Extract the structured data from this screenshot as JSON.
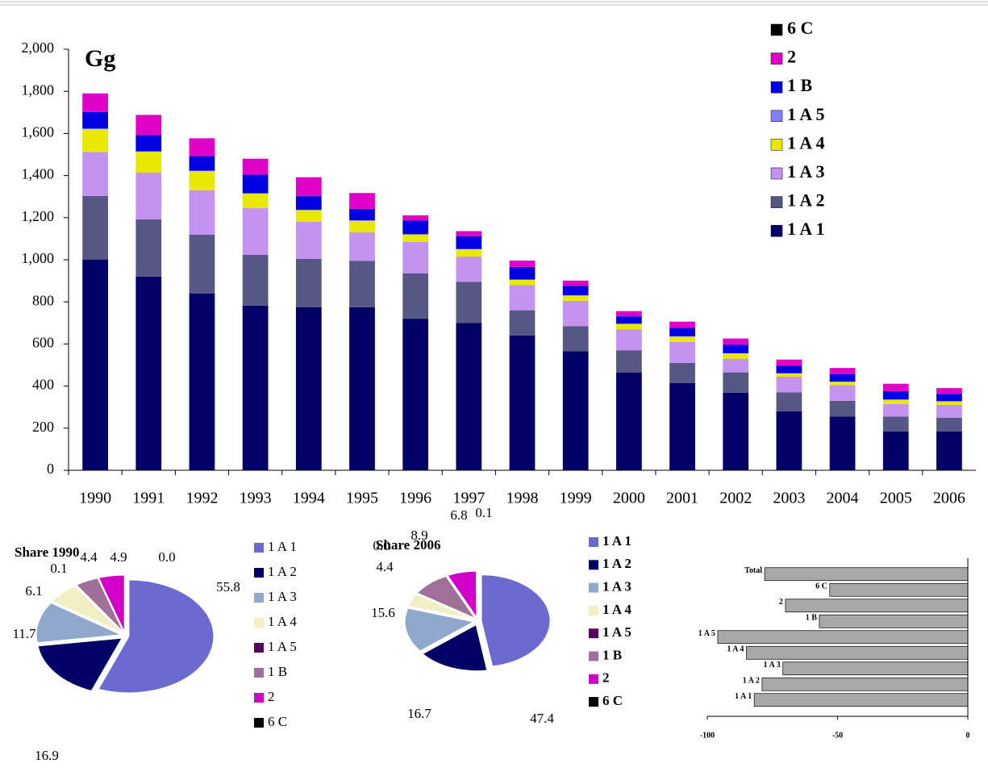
{
  "chart_data": [
    {
      "type": "stacked-bar",
      "annotation": "Gg",
      "categories": [
        "1990",
        "1991",
        "1992",
        "1993",
        "1994",
        "1995",
        "1996",
        "1997",
        "1998",
        "1999",
        "2000",
        "2001",
        "2002",
        "2003",
        "2004",
        "2005",
        "2006"
      ],
      "series": [
        {
          "name": "1 A 1",
          "color": "#000066",
          "values": [
            1000,
            920,
            839,
            782,
            774,
            775,
            720,
            700,
            640,
            565,
            465,
            415,
            368,
            280,
            255,
            185,
            185
          ]
        },
        {
          "name": "1 A 2",
          "color": "#575785",
          "values": [
            303,
            272,
            280,
            241,
            230,
            220,
            215,
            195,
            120,
            120,
            105,
            95,
            97,
            90,
            75,
            70,
            65
          ]
        },
        {
          "name": "1 A 3",
          "color": "#c493f0",
          "values": [
            209,
            222,
            211,
            222,
            176,
            135,
            150,
            120,
            120,
            120,
            100,
            100,
            65,
            75,
            75,
            60,
            61
          ]
        },
        {
          "name": "1 A 4",
          "color": "#e8e800",
          "values": [
            109,
            99,
            91,
            69,
            55,
            55,
            35,
            35,
            25,
            25,
            25,
            25,
            25,
            15,
            15,
            20,
            17
          ]
        },
        {
          "name": "1 A 5",
          "color": "#8080ff",
          "values": [
            2,
            2,
            2,
            2,
            2,
            2,
            1,
            1,
            1,
            1,
            1,
            1,
            1,
            1,
            1,
            1,
            0
          ]
        },
        {
          "name": "1 B",
          "color": "#0000e0",
          "values": [
            79,
            77,
            69,
            88,
            65,
            55,
            65,
            60,
            60,
            45,
            35,
            40,
            40,
            35,
            35,
            40,
            35
          ]
        },
        {
          "name": "2",
          "color": "#e000c8",
          "values": [
            88,
            96,
            85,
            76,
            90,
            75,
            25,
            25,
            30,
            25,
            25,
            30,
            30,
            30,
            30,
            35,
            27
          ]
        },
        {
          "name": "6 C",
          "color": "#000000",
          "values": [
            0,
            0,
            0,
            0,
            0,
            0,
            0,
            0,
            0,
            0,
            0,
            0,
            0,
            0,
            0,
            0,
            0.4
          ]
        }
      ],
      "ylim": [
        0,
        2000
      ],
      "yticks": [
        0,
        200,
        400,
        600,
        800,
        {
          "value": 1000,
          "label": "1,000"
        },
        {
          "value": 1200,
          "label": "1,200"
        },
        {
          "value": 1400,
          "label": "1,400"
        },
        {
          "value": 1600,
          "label": "1,600"
        },
        {
          "value": 1800,
          "label": "1,800"
        },
        {
          "value": 2000,
          "label": "2,000"
        }
      ]
    },
    {
      "type": "pie",
      "title": "Share 1990",
      "categories": [
        "1 A 1",
        "1 A 2",
        "1 A 3",
        "1 A 4",
        "1 A 5",
        "1 B",
        "2",
        "6 C"
      ],
      "colors": [
        "#6a6ad0",
        "#000066",
        "#8fa8cc",
        "#f0f0c4",
        "#55005f",
        "#a07098",
        "#d000c8",
        "#000000"
      ],
      "values": [
        55.8,
        16.9,
        11.7,
        6.1,
        0.1,
        4.4,
        4.9,
        0.0
      ],
      "value_labels": [
        "55.8",
        "16.9",
        "11.7",
        "6.1",
        "0.1",
        "4.4",
        "4.9",
        "0.0"
      ]
    },
    {
      "type": "pie",
      "title": "Share 2006",
      "categories": [
        "1 A 1",
        "1 A 2",
        "1 A 3",
        "1 A 4",
        "1 A 5",
        "1 B",
        "2",
        "6 C"
      ],
      "colors": [
        "#6a6ad0",
        "#000066",
        "#8fa8cc",
        "#f0f0c4",
        "#55005f",
        "#a07098",
        "#d000c8",
        "#000000"
      ],
      "values": [
        47.4,
        16.7,
        15.6,
        4.4,
        0.0,
        8.9,
        6.8,
        0.1
      ],
      "value_labels": [
        "47.4",
        "16.7",
        "15.6",
        "4.4",
        "0.0",
        "8.9",
        "6.8",
        "0.1"
      ]
    },
    {
      "type": "hbar",
      "categories": [
        "Total",
        "6 C",
        "2",
        "1 B",
        "1 A 5",
        "1 A 4",
        "1 A 3",
        "1 A 2",
        "1 A 1"
      ],
      "values": [
        -78,
        -53,
        -70,
        -57,
        -96,
        -85,
        -71,
        -79,
        -82
      ],
      "color": "#a8a8a8",
      "xlim": [
        -100,
        0
      ],
      "xticks": [
        -100,
        -50,
        0
      ]
    }
  ]
}
